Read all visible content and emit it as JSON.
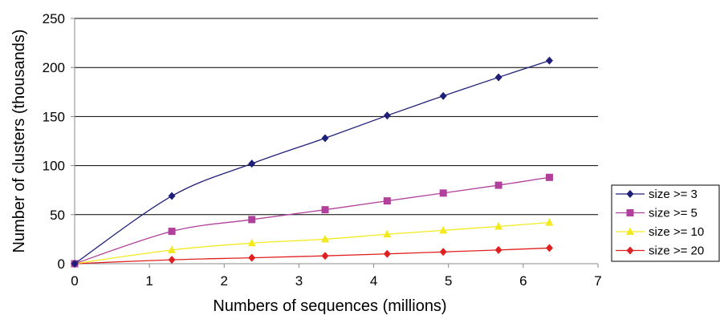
{
  "chart_data": {
    "type": "line",
    "title": "",
    "xlabel": "Numbers of sequences (millions)",
    "ylabel": "Number of clusters (thousands)",
    "xlim": [
      0,
      7
    ],
    "ylim": [
      0,
      250
    ],
    "xticks": [
      "0",
      "1",
      "2",
      "3",
      "4",
      "5",
      "6",
      "7"
    ],
    "yticks": [
      "0",
      "50",
      "100",
      "150",
      "200",
      "250"
    ],
    "grid": "horizontal",
    "legend_position": "right",
    "series": [
      {
        "name": "size >= 3",
        "color": "#1f1f7a",
        "marker": "diamond",
        "x": [
          0,
          1.3,
          2.37,
          3.35,
          4.18,
          4.93,
          5.67,
          6.35
        ],
        "y": [
          0,
          69,
          102,
          128,
          151,
          171,
          190,
          207
        ]
      },
      {
        "name": "size >= 5",
        "color": "#b0409b",
        "marker": "square",
        "x": [
          0,
          1.3,
          2.37,
          3.35,
          4.18,
          4.93,
          5.67,
          6.35
        ],
        "y": [
          0,
          33,
          45,
          55,
          64,
          72,
          80,
          88
        ]
      },
      {
        "name": "size >= 10",
        "color": "#f2ea1f",
        "marker": "triangle",
        "x": [
          0,
          1.3,
          2.37,
          3.35,
          4.18,
          4.93,
          5.67,
          6.35
        ],
        "y": [
          0,
          14,
          21,
          25,
          30,
          34,
          38,
          42
        ]
      },
      {
        "name": "size >= 20",
        "color": "#e02020",
        "marker": "diamond",
        "x": [
          0,
          1.3,
          2.37,
          3.35,
          4.18,
          4.93,
          5.67,
          6.35
        ],
        "y": [
          0,
          4,
          6,
          8,
          10,
          12,
          14,
          16
        ]
      }
    ]
  }
}
